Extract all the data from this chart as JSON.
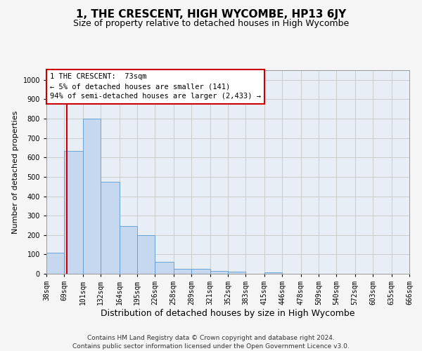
{
  "title": "1, THE CRESCENT, HIGH WYCOMBE, HP13 6JY",
  "subtitle": "Size of property relative to detached houses in High Wycombe",
  "xlabel": "Distribution of detached houses by size in High Wycombe",
  "ylabel": "Number of detached properties",
  "footer_line1": "Contains HM Land Registry data © Crown copyright and database right 2024.",
  "footer_line2": "Contains public sector information licensed under the Open Government Licence v3.0.",
  "bar_edges": [
    38,
    69,
    101,
    132,
    164,
    195,
    226,
    258,
    289,
    321,
    352,
    383,
    415,
    446,
    478,
    509,
    540,
    572,
    603,
    635,
    666
  ],
  "bar_heights": [
    110,
    635,
    800,
    475,
    248,
    200,
    62,
    25,
    25,
    15,
    10,
    0,
    8,
    0,
    0,
    0,
    0,
    0,
    0,
    0
  ],
  "bar_color": "#c5d8f0",
  "bar_edgecolor": "#5b9bd5",
  "property_size": 73,
  "red_line_color": "#cc0000",
  "annotation_text_line1": "1 THE CRESCENT:  73sqm",
  "annotation_text_line2": "← 5% of detached houses are smaller (141)",
  "annotation_text_line3": "94% of semi-detached houses are larger (2,433) →",
  "annotation_box_color": "#ffffff",
  "annotation_box_edgecolor": "#cc0000",
  "ylim": [
    0,
    1050
  ],
  "yticks": [
    0,
    100,
    200,
    300,
    400,
    500,
    600,
    700,
    800,
    900,
    1000
  ],
  "grid_color": "#cccccc",
  "bg_color": "#e8eef5",
  "fig_bg_color": "#f5f5f5",
  "title_fontsize": 11,
  "subtitle_fontsize": 9,
  "xlabel_fontsize": 9,
  "ylabel_fontsize": 8,
  "tick_fontsize": 7,
  "annotation_fontsize": 7.5,
  "footer_fontsize": 6.5
}
